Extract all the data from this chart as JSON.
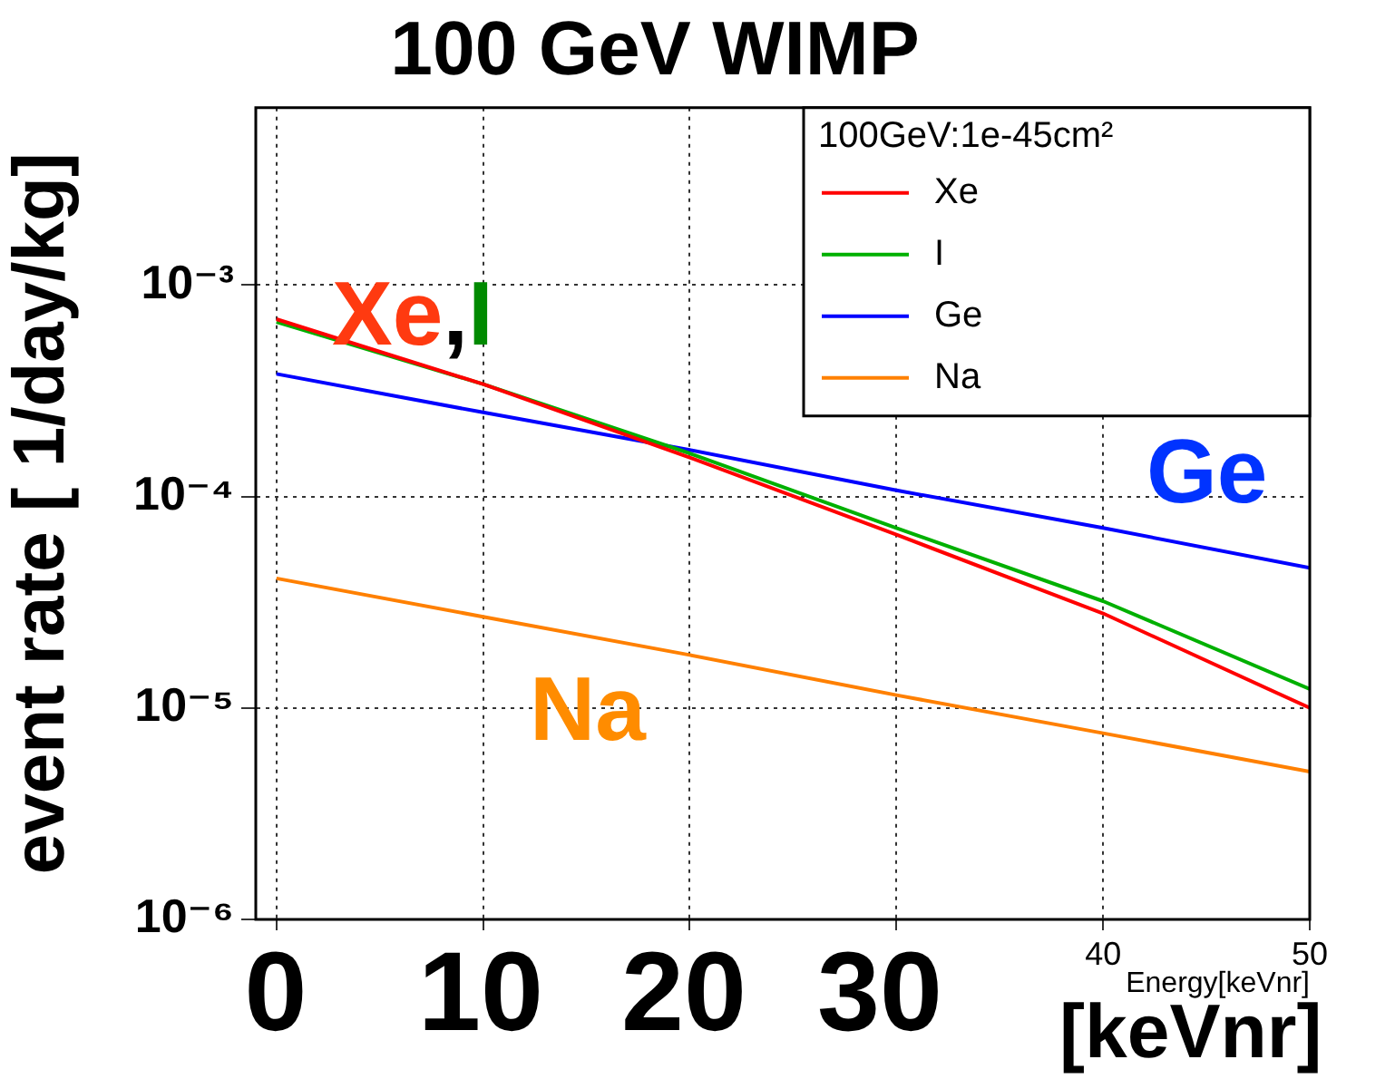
{
  "chart_data": {
    "type": "line",
    "title": "100 GeV WIMP",
    "xlabel": "Energy[keVnr]",
    "ylabel": "event rate [ 1/day/kg]",
    "legend_title": "100GeV:1e-45cm²",
    "x": [
      0,
      10,
      20,
      30,
      40,
      50
    ],
    "series": [
      {
        "name": "Xe",
        "color": "#ff0000",
        "values": [
          0.00069,
          0.00034,
          0.000153,
          6.6e-05,
          2.8e-05,
          1e-05
        ]
      },
      {
        "name": "I",
        "color": "#00b000",
        "values": [
          0.00067,
          0.00034,
          0.00016,
          7.1e-05,
          3.2e-05,
          1.23e-05
        ]
      },
      {
        "name": "Ge",
        "color": "#0000ff",
        "values": [
          0.00038,
          0.00025,
          0.000166,
          0.000107,
          7.1e-05,
          4.6e-05
        ]
      },
      {
        "name": "Na",
        "color": "#ff8000",
        "values": [
          4.1e-05,
          2.7e-05,
          1.78e-05,
          1.15e-05,
          7.6e-06,
          5e-06
        ]
      }
    ],
    "xlim": [
      -1,
      50
    ],
    "xticks": [
      {
        "value": 0,
        "label": null
      },
      {
        "value": 10,
        "label": null
      },
      {
        "value": 20,
        "label": null
      },
      {
        "value": 30,
        "label": null
      },
      40,
      50
    ],
    "ylim": [
      1e-06,
      0.0069
    ],
    "yticks": [
      {
        "value": 1e-06,
        "label": "10⁻⁶"
      },
      {
        "value": 1e-05,
        "label": "10⁻⁵"
      },
      {
        "value": 0.0001,
        "label": "10⁻⁴"
      },
      {
        "value": 0.001,
        "label": "10⁻³"
      }
    ],
    "log": "y",
    "grid": true,
    "legend": "top right",
    "marker": "none",
    "line_style": "solid",
    "annotations": [
      "Xe,I",
      "Ge",
      "Na",
      "0",
      "10",
      "20",
      "30",
      "[keVnr]"
    ]
  }
}
